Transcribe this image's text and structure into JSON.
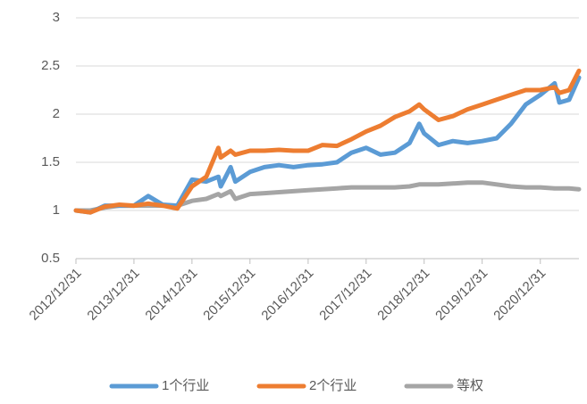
{
  "chart_data": {
    "type": "line",
    "x": [
      "2012/12/31",
      "2013/03/31",
      "2013/06/30",
      "2013/09/30",
      "2013/12/31",
      "2014/03/31",
      "2014/06/30",
      "2014/09/30",
      "2014/12/31",
      "2015/03/31",
      "2015/06/15",
      "2015/06/30",
      "2015/08/31",
      "2015/09/30",
      "2015/12/31",
      "2016/03/31",
      "2016/06/30",
      "2016/09/30",
      "2016/12/31",
      "2017/03/31",
      "2017/06/30",
      "2017/09/30",
      "2017/12/31",
      "2018/03/31",
      "2018/06/30",
      "2018/09/30",
      "2018/11/30",
      "2018/12/31",
      "2019/03/31",
      "2019/06/30",
      "2019/09/30",
      "2019/12/31",
      "2020/03/31",
      "2020/06/30",
      "2020/09/30",
      "2020/12/31",
      "2021/03/31",
      "2021/04/30",
      "2021/06/30",
      "2021/08/31"
    ],
    "series": [
      {
        "name": "1个行业",
        "color": "#5b9bd5",
        "values": [
          1.0,
          0.98,
          1.05,
          1.05,
          1.05,
          1.15,
          1.06,
          1.05,
          1.32,
          1.3,
          1.35,
          1.25,
          1.45,
          1.3,
          1.4,
          1.45,
          1.47,
          1.45,
          1.47,
          1.48,
          1.5,
          1.6,
          1.65,
          1.58,
          1.6,
          1.7,
          1.9,
          1.8,
          1.68,
          1.72,
          1.7,
          1.72,
          1.75,
          1.9,
          2.1,
          2.2,
          2.32,
          2.12,
          2.15,
          2.38
        ]
      },
      {
        "name": "2个行业",
        "color": "#ed7d31",
        "values": [
          1.0,
          0.98,
          1.04,
          1.06,
          1.05,
          1.07,
          1.05,
          1.02,
          1.25,
          1.35,
          1.65,
          1.55,
          1.62,
          1.58,
          1.62,
          1.62,
          1.63,
          1.62,
          1.62,
          1.68,
          1.67,
          1.74,
          1.82,
          1.88,
          1.97,
          2.03,
          2.1,
          2.05,
          1.94,
          1.98,
          2.05,
          2.1,
          2.15,
          2.2,
          2.25,
          2.25,
          2.28,
          2.22,
          2.25,
          2.45
        ]
      },
      {
        "name": "等权",
        "color": "#a5a5a5",
        "values": [
          1.0,
          1.0,
          1.03,
          1.05,
          1.05,
          1.05,
          1.05,
          1.05,
          1.1,
          1.12,
          1.17,
          1.15,
          1.2,
          1.12,
          1.17,
          1.18,
          1.19,
          1.2,
          1.21,
          1.22,
          1.23,
          1.24,
          1.24,
          1.24,
          1.24,
          1.25,
          1.27,
          1.27,
          1.27,
          1.28,
          1.29,
          1.29,
          1.27,
          1.25,
          1.24,
          1.24,
          1.23,
          1.23,
          1.23,
          1.22
        ]
      }
    ],
    "xlim": [
      "2012/12/31",
      "2021/08/31"
    ],
    "xticks": [
      "2012/12/31",
      "2013/12/31",
      "2014/12/31",
      "2015/12/31",
      "2016/12/31",
      "2017/12/31",
      "2018/12/31",
      "2019/12/31",
      "2020/12/31"
    ],
    "ylim": [
      0.5,
      3
    ],
    "yticks": [
      0.5,
      1,
      1.5,
      2,
      2.5,
      3
    ],
    "grid": true,
    "legend": "bottom"
  }
}
